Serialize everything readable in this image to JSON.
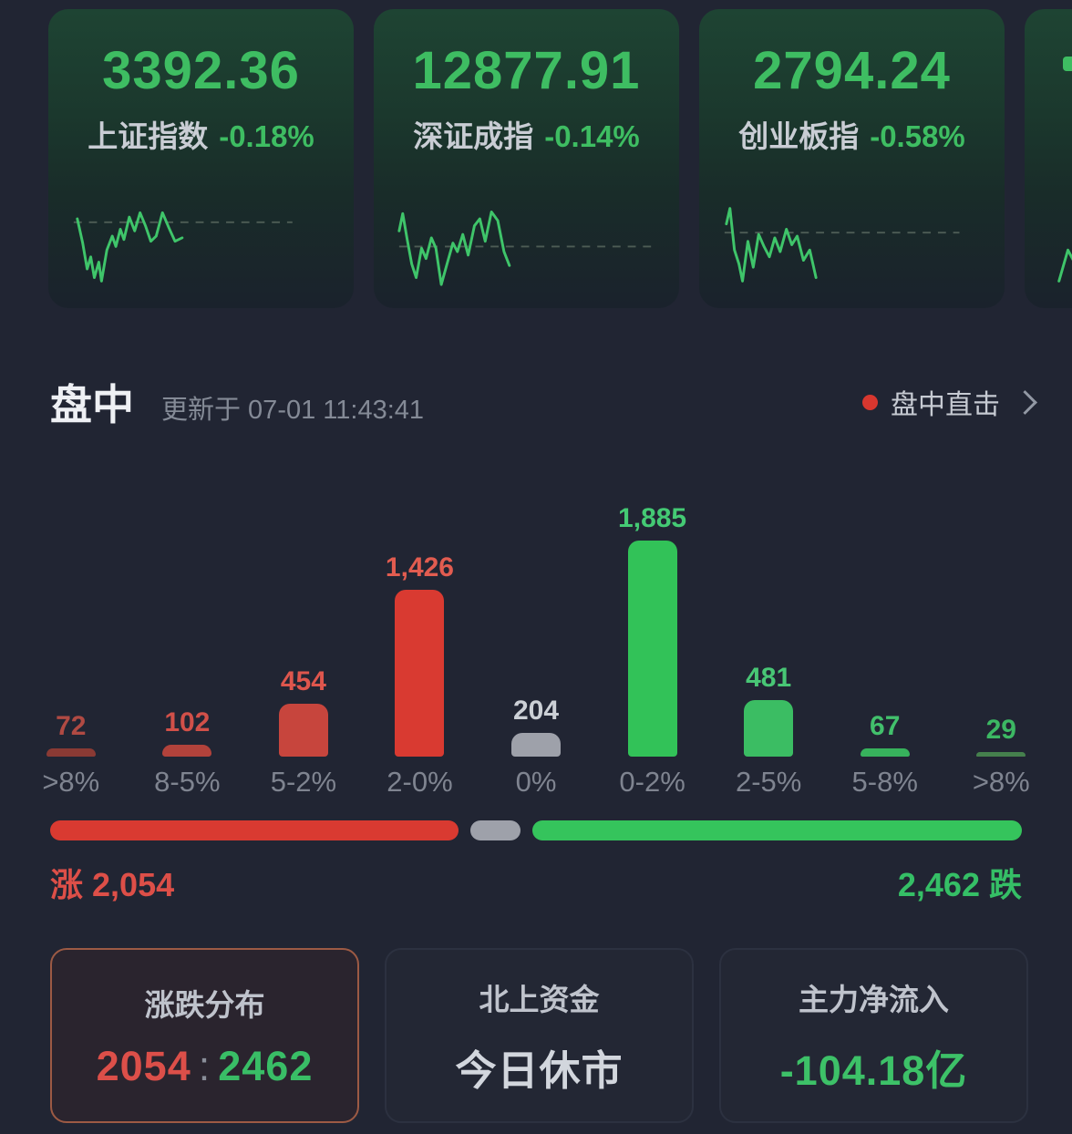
{
  "section": {
    "title": "盘中",
    "updated": "更新于 07-01 11:43:41",
    "link_label": "盘中直击"
  },
  "indices": [
    {
      "value": "3392.36",
      "name": "上证指数",
      "change": "-0.18%",
      "spark": {
        "dash_y": 24,
        "dash_x": [
          8,
          252
        ],
        "points": [
          [
            12,
            20
          ],
          [
            18,
            48
          ],
          [
            23,
            78
          ],
          [
            27,
            64
          ],
          [
            31,
            88
          ],
          [
            36,
            70
          ],
          [
            39,
            92
          ],
          [
            45,
            56
          ],
          [
            51,
            40
          ],
          [
            55,
            52
          ],
          [
            60,
            32
          ],
          [
            64,
            44
          ],
          [
            70,
            18
          ],
          [
            76,
            34
          ],
          [
            82,
            13
          ],
          [
            88,
            28
          ],
          [
            94,
            46
          ],
          [
            100,
            40
          ],
          [
            107,
            13
          ],
          [
            114,
            30
          ],
          [
            121,
            46
          ],
          [
            129,
            42
          ]
        ]
      }
    },
    {
      "value": "12877.91",
      "name": "深证成指",
      "change": "-0.14%",
      "spark": {
        "dash_y": 52,
        "dash_x": [
          8,
          290
        ],
        "points": [
          [
            8,
            34
          ],
          [
            12,
            14
          ],
          [
            17,
            44
          ],
          [
            22,
            72
          ],
          [
            27,
            88
          ],
          [
            33,
            54
          ],
          [
            38,
            66
          ],
          [
            44,
            42
          ],
          [
            49,
            54
          ],
          [
            55,
            96
          ],
          [
            62,
            70
          ],
          [
            68,
            48
          ],
          [
            73,
            58
          ],
          [
            79,
            38
          ],
          [
            85,
            62
          ],
          [
            92,
            28
          ],
          [
            98,
            20
          ],
          [
            104,
            46
          ],
          [
            111,
            12
          ],
          [
            118,
            22
          ],
          [
            125,
            58
          ],
          [
            131,
            74
          ]
        ]
      }
    },
    {
      "value": "2794.24",
      "name": "创业板指",
      "change": "-0.58%",
      "spark": {
        "dash_y": 36,
        "dash_x": [
          8,
          270
        ],
        "points": [
          [
            10,
            26
          ],
          [
            14,
            8
          ],
          [
            19,
            56
          ],
          [
            24,
            72
          ],
          [
            28,
            92
          ],
          [
            34,
            46
          ],
          [
            40,
            76
          ],
          [
            46,
            38
          ],
          [
            52,
            52
          ],
          [
            58,
            64
          ],
          [
            64,
            42
          ],
          [
            70,
            58
          ],
          [
            77,
            32
          ],
          [
            83,
            50
          ],
          [
            89,
            40
          ],
          [
            96,
            68
          ],
          [
            103,
            56
          ],
          [
            110,
            88
          ]
        ]
      }
    }
  ],
  "partial_index": {
    "spark": {
      "dash_y": null,
      "dash_x": null,
      "points": [
        [
          18,
          92
        ],
        [
          28,
          56
        ],
        [
          36,
          72
        ],
        [
          45,
          32
        ],
        [
          52,
          46
        ]
      ]
    }
  },
  "chart_data": {
    "type": "bar",
    "title": "涨跌分布",
    "categories": [
      ">8%",
      "8-5%",
      "5-2%",
      "2-0%",
      "0%",
      "0-2%",
      "2-5%",
      "5-8%",
      ">8%"
    ],
    "values": [
      72,
      102,
      454,
      1426,
      204,
      1885,
      481,
      67,
      29
    ],
    "value_labels": [
      "72",
      "102",
      "454",
      "1,426",
      "204",
      "1,885",
      "481",
      "67",
      "29"
    ],
    "bar_colors": [
      "#8a3a34",
      "#b2423b",
      "#c7453d",
      "#d93a31",
      "#9ea1aa",
      "#32c258",
      "#3bbd63",
      "#37b25c",
      "#45804d"
    ],
    "label_colors": [
      "#b04a43",
      "#d25049",
      "#de564d",
      "#e25c50",
      "#ccd0d6",
      "#44ca74",
      "#48c675",
      "#42c06c",
      "#3cb863"
    ],
    "xlabel": "",
    "ylabel": "",
    "ylim": [
      0,
      1885
    ],
    "legend_position": "none",
    "grid": false
  },
  "ratio": {
    "up_prefix": "涨",
    "up_value": "2,054",
    "down_value": "2,462",
    "down_suffix": "跌",
    "counts": {
      "up": 2054,
      "flat": 204,
      "down": 2462
    },
    "segment_colors": {
      "up": "#d93a31",
      "flat": "#9ea1aa",
      "down": "#35c45c"
    }
  },
  "summary_cards": [
    {
      "name": "updown-distribution-card",
      "title": "涨跌分布",
      "selected": true,
      "split": {
        "up": "2054",
        "sep": ":",
        "down": "2462"
      }
    },
    {
      "name": "northbound-funds-card",
      "title": "北上资金",
      "selected": false,
      "value": "今日休市",
      "value_color": "#d2d6dd"
    },
    {
      "name": "main-net-inflow-card",
      "title": "主力净流入",
      "selected": false,
      "value": "-104.18亿",
      "value_color": "#3dc168"
    }
  ]
}
